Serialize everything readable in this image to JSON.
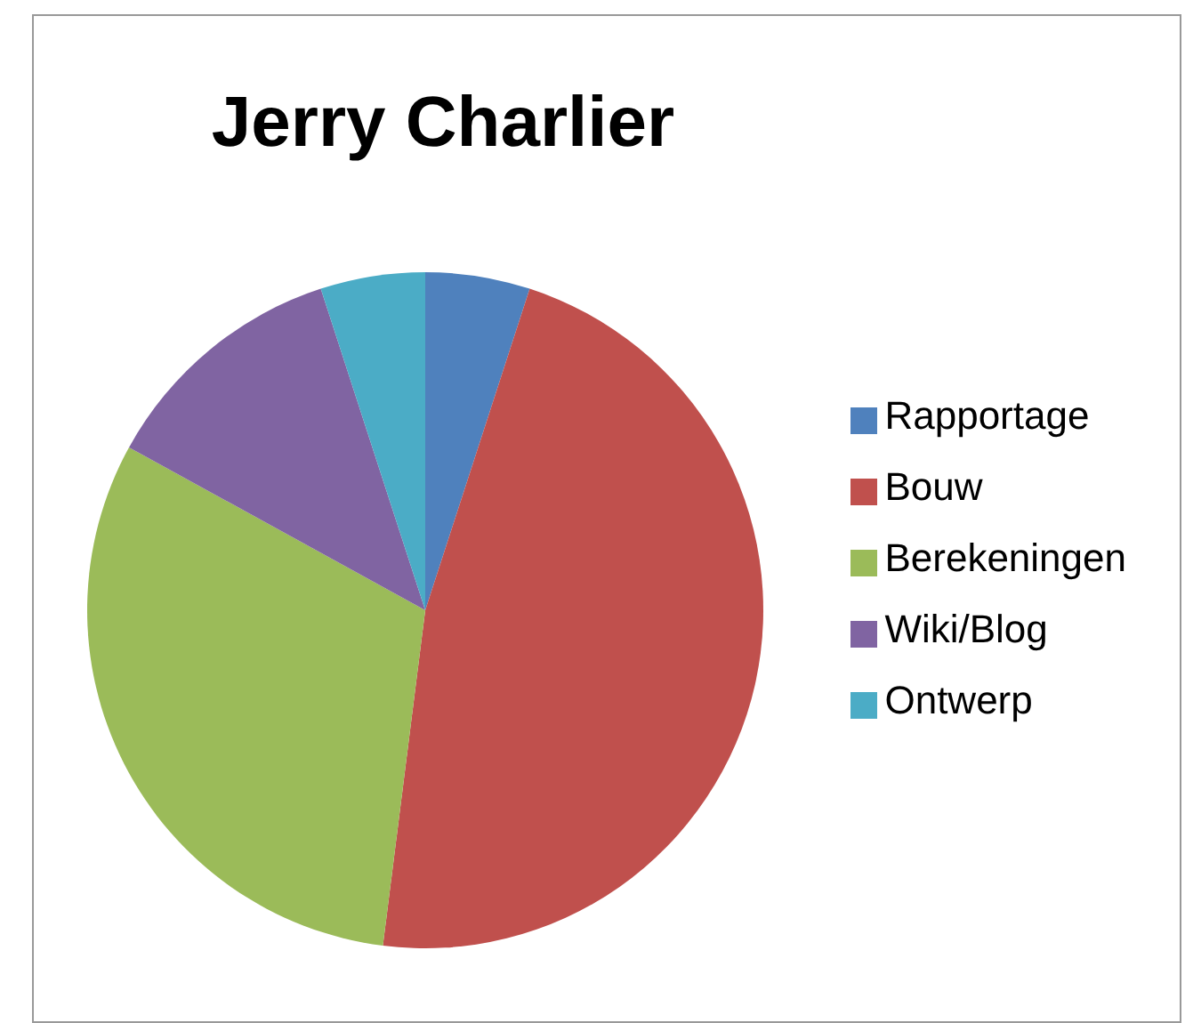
{
  "chart_data": {
    "type": "pie",
    "title": "Jerry Charlier",
    "categories": [
      "Rapportage",
      "Bouw",
      "Berekeningen",
      "Wiki/Blog",
      "Ontwerp"
    ],
    "values": [
      5,
      47,
      31,
      12,
      5
    ],
    "colors": [
      "#4f81bd",
      "#c0504d",
      "#9bbb59",
      "#8064a2",
      "#4bacc6"
    ],
    "legend": "right"
  }
}
